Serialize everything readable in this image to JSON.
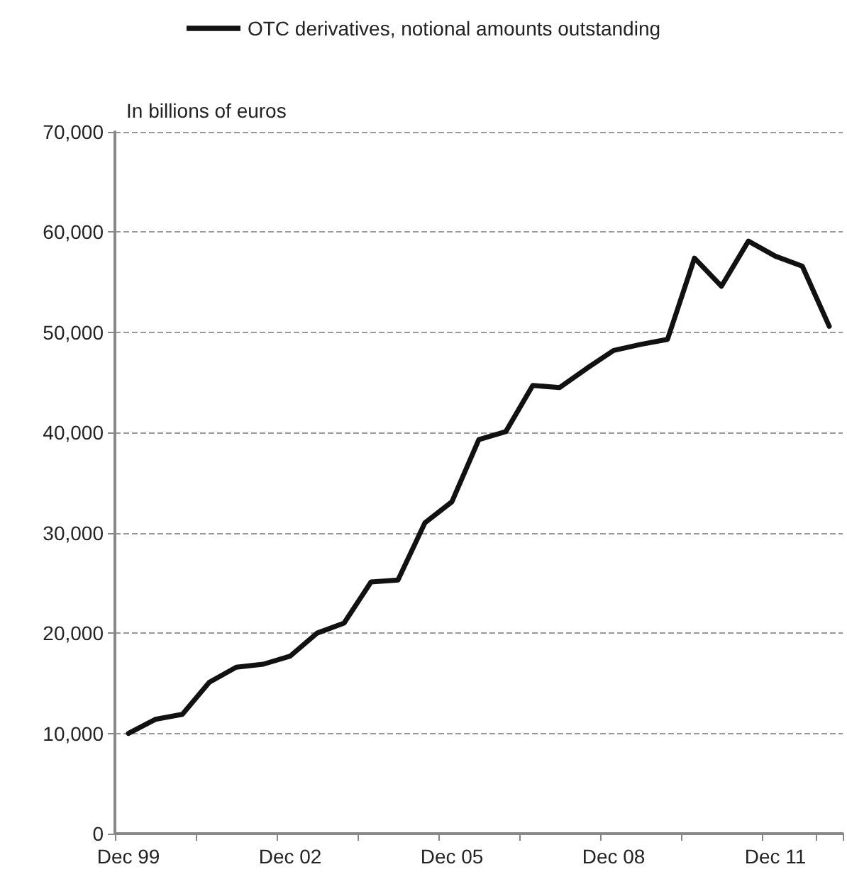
{
  "chart_data": {
    "type": "line",
    "ylabel": "In billions of euros",
    "categories": [
      "Dec 99",
      null,
      null,
      null,
      null,
      null,
      "Dec 02",
      null,
      null,
      null,
      null,
      null,
      "Dec 05",
      null,
      null,
      null,
      null,
      null,
      "Dec 08",
      null,
      null,
      null,
      null,
      null,
      "Dec 11",
      null,
      null
    ],
    "series": [
      {
        "name": "OTC derivatives, notional amounts outstanding",
        "color": "#111111",
        "values": [
          10000,
          11400,
          11900,
          15100,
          16600,
          16900,
          17700,
          20000,
          21000,
          25100,
          25300,
          31000,
          33100,
          39300,
          40100,
          44700,
          44500,
          46400,
          48200,
          48800,
          49300,
          57400,
          54600,
          59100,
          57600,
          56600,
          50600
        ]
      }
    ],
    "ylim": [
      0,
      70000
    ],
    "yticks": [
      0,
      {
        "value": 10000,
        "label": "10,000"
      },
      {
        "value": 20000,
        "label": "20,000"
      },
      {
        "value": 30000,
        "label": "30,000"
      },
      {
        "value": 40000,
        "label": "40,000"
      },
      {
        "value": 50000,
        "label": "50,000"
      },
      {
        "value": 60000,
        "label": "60,000"
      },
      {
        "value": 70000,
        "label": "70,000"
      }
    ],
    "grid": "y",
    "legend": "top",
    "marker": "none",
    "line_style": "solid"
  }
}
